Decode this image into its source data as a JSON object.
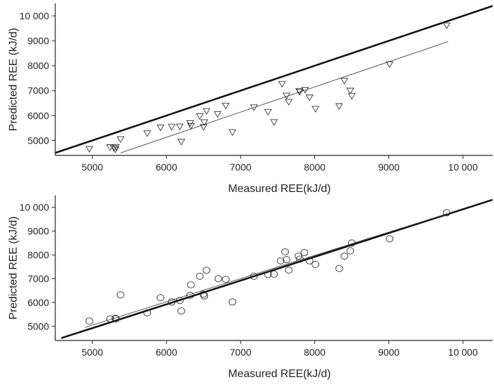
{
  "chart_data": [
    {
      "type": "scatter",
      "xlabel": "Measured REE(kJ/d)",
      "ylabel": "Predicted REE (kJ/d)",
      "xlim": [
        4500,
        10400
      ],
      "ylim": [
        4400,
        10500
      ],
      "xticks": [
        "5000",
        "6000",
        "7000",
        "8000",
        "9000",
        "10 000"
      ],
      "yticks": [
        "5000",
        "6000",
        "7000",
        "8000",
        "9000",
        "10 000"
      ],
      "marker": "triangle-down",
      "grid": false,
      "identity_line": {
        "x": [
          4500,
          10400
        ],
        "y": [
          4500,
          10400
        ]
      },
      "fit_line": {
        "x": [
          5380,
          9800
        ],
        "y": [
          4500,
          8970
        ]
      },
      "series": [
        {
          "x": [
            4960,
            5240,
            5290,
            5310,
            5320,
            5380,
            5740,
            5920,
            6070,
            6180,
            6200,
            6320,
            6330,
            6450,
            6500,
            6510,
            6540,
            6690,
            6800,
            6890,
            7180,
            7370,
            7450,
            7560,
            7620,
            7650,
            7790,
            7800,
            7870,
            7930,
            8010,
            8330,
            8400,
            8480,
            8500,
            9010,
            9780
          ],
          "y": [
            4660,
            4730,
            4700,
            4640,
            4740,
            5050,
            5290,
            5520,
            5550,
            5560,
            4950,
            5700,
            5590,
            5980,
            5540,
            5730,
            6180,
            6060,
            6400,
            5330,
            6330,
            6150,
            5740,
            7270,
            6800,
            6550,
            6980,
            6960,
            7030,
            6730,
            6270,
            6380,
            7400,
            7000,
            6790,
            8060,
            9620
          ]
        }
      ]
    },
    {
      "type": "scatter",
      "xlabel": "Measured REE(kJ/d)",
      "ylabel": "Predicted REE (kJ/d)",
      "xlim": [
        4500,
        10400
      ],
      "ylim": [
        4400,
        10500
      ],
      "xticks": [
        "5000",
        "6000",
        "7000",
        "8000",
        "9000",
        "10 000"
      ],
      "yticks": [
        "5000",
        "6000",
        "7000",
        "8000",
        "9000",
        "10 000"
      ],
      "marker": "circle",
      "grid": false,
      "identity_line": {
        "x": [
          4580,
          10400
        ],
        "y": [
          4500,
          10320
        ]
      },
      "fit_line": {
        "x": [
          4900,
          9800
        ],
        "y": [
          4950,
          9740
        ]
      },
      "series": [
        {
          "x": [
            4960,
            5240,
            5310,
            5320,
            5380,
            5740,
            5920,
            6070,
            6180,
            6200,
            6320,
            6330,
            6450,
            6500,
            6510,
            6540,
            6700,
            6800,
            6890,
            7180,
            7370,
            7450,
            7540,
            7600,
            7620,
            7650,
            7780,
            7800,
            7860,
            7930,
            8010,
            8330,
            8400,
            8480,
            8500,
            9010,
            9780
          ],
          "y": [
            5220,
            5310,
            5340,
            5310,
            6320,
            5560,
            6200,
            6020,
            6080,
            5640,
            6300,
            6740,
            7100,
            6350,
            6270,
            7350,
            7000,
            6970,
            6020,
            7100,
            7180,
            7190,
            7750,
            8130,
            7800,
            7360,
            7950,
            7820,
            8100,
            7750,
            7600,
            7430,
            7950,
            8170,
            8500,
            8680,
            9770
          ]
        }
      ]
    }
  ]
}
